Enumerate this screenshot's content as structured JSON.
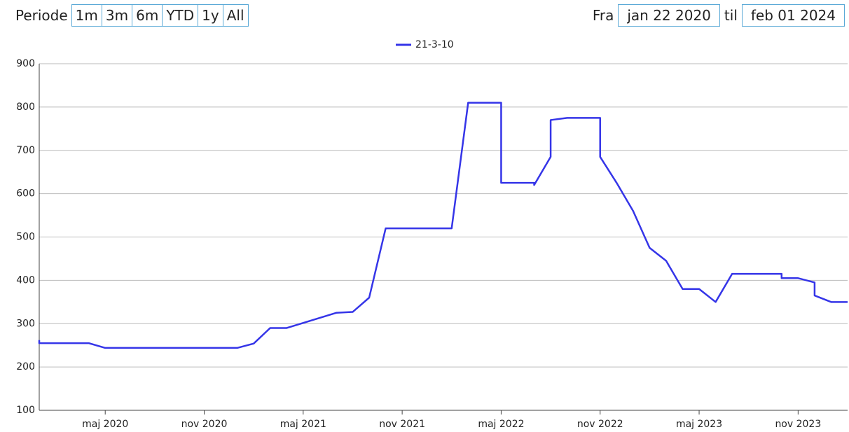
{
  "controls": {
    "period_label": "Periode",
    "periods": [
      "1m",
      "3m",
      "6m",
      "YTD",
      "1y",
      "All"
    ],
    "from_label": "Fra",
    "from": "jan 22 2020",
    "to_label": "til",
    "to": "feb 01 2024"
  },
  "chart_data": {
    "type": "line",
    "x": [
      "2020-01",
      "2020-01",
      "2020-04",
      "2020-05",
      "2021-01",
      "2021-02",
      "2021-03",
      "2021-04",
      "2021-07",
      "2021-08",
      "2021-09",
      "2021-10",
      "2022-02",
      "2022-03",
      "2022-05",
      "2022-05",
      "2022-05",
      "2022-07",
      "2022-07",
      "2022-08",
      "2022-08",
      "2022-09",
      "2022-09",
      "2022-11",
      "2022-11",
      "2022-12",
      "2023-01",
      "2023-02",
      "2023-03",
      "2023-04",
      "2023-05",
      "2023-06",
      "2023-07",
      "2023-10",
      "2023-10",
      "2023-11",
      "2023-12",
      "2023-12",
      "2023-12",
      "2024-01",
      "2024-02"
    ],
    "series": [
      {
        "name": "21-3-10",
        "color": "#3535e8",
        "values": [
          262,
          255,
          255,
          244,
          244,
          254,
          290,
          290,
          325,
          327,
          360,
          520,
          520,
          810,
          810,
          632,
          625,
          625,
          620,
          685,
          770,
          775,
          775,
          775,
          685,
          625,
          560,
          475,
          445,
          380,
          380,
          350,
          415,
          415,
          405,
          405,
          395,
          390,
          365,
          350,
          350
        ]
      }
    ],
    "xlim": [
      "2020-01",
      "2024-02"
    ],
    "xticks": [
      {
        "value": "2020-05",
        "label": "maj 2020"
      },
      {
        "value": "2020-11",
        "label": "nov 2020"
      },
      {
        "value": "2021-05",
        "label": "maj 2021"
      },
      {
        "value": "2021-11",
        "label": "nov 2021"
      },
      {
        "value": "2022-05",
        "label": "maj 2022"
      },
      {
        "value": "2022-11",
        "label": "nov 2022"
      },
      {
        "value": "2023-05",
        "label": "maj 2023"
      },
      {
        "value": "2023-11",
        "label": "nov 2023"
      }
    ],
    "ylim": [
      100,
      900
    ],
    "yticks": [
      100,
      200,
      300,
      400,
      500,
      600,
      700,
      800,
      900
    ],
    "grid": true
  }
}
